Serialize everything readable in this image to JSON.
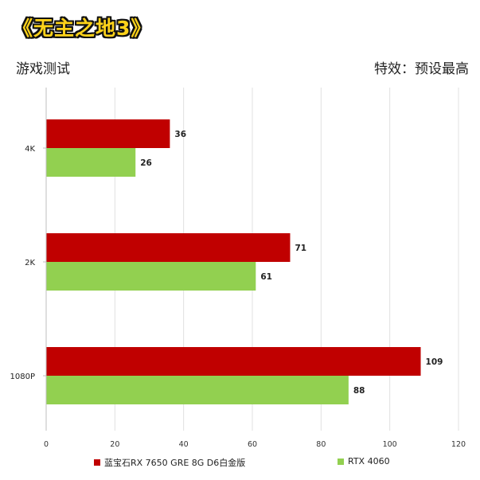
{
  "header": {
    "game_title": "《无主之地3》",
    "left_caption": "游戏测试",
    "right_caption": "特效：预设最高"
  },
  "colors": {
    "series_1": "#c00000",
    "series_2": "#92d050",
    "grid": "#e0e0e0",
    "axis": "#bfbfbf",
    "title_fill": "#fdd21a"
  },
  "chart_data": {
    "type": "bar",
    "orientation": "horizontal",
    "categories": [
      "4K",
      "2K",
      "1080P"
    ],
    "series": [
      {
        "name": "蓝宝石RX 7650 GRE 8G D6白金版",
        "values": [
          36,
          71,
          109
        ]
      },
      {
        "name": "RTX 4060",
        "values": [
          26,
          61,
          88
        ]
      }
    ],
    "xlim": [
      0,
      120
    ],
    "xticks": [
      0,
      20,
      40,
      60,
      80,
      100,
      120
    ],
    "grid": true,
    "legend_position": "bottom"
  }
}
